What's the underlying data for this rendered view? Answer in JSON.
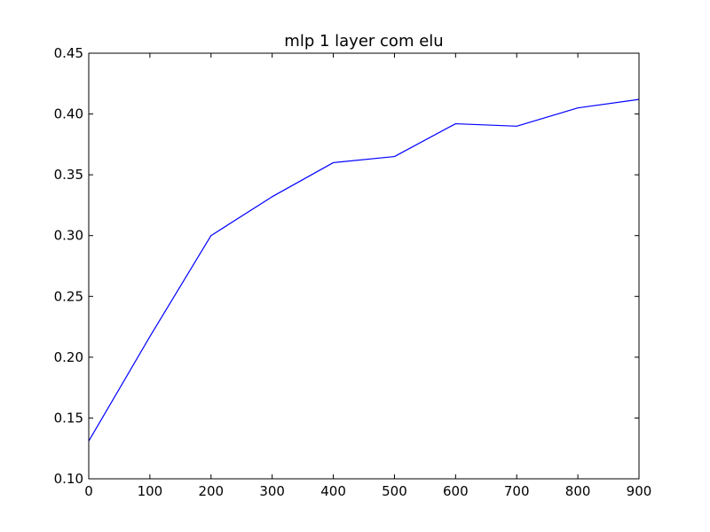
{
  "chart_data": {
    "type": "line",
    "title": "mlp 1 layer com elu",
    "xlabel": "",
    "ylabel": "",
    "xlim": [
      0,
      900
    ],
    "ylim": [
      0.1,
      0.45
    ],
    "xticks": [
      0,
      100,
      200,
      300,
      400,
      500,
      600,
      700,
      800,
      900
    ],
    "xtick_labels": [
      "0",
      "100",
      "200",
      "300",
      "400",
      "500",
      "600",
      "700",
      "800",
      "900"
    ],
    "yticks": [
      0.1,
      0.15,
      0.2,
      0.25,
      0.3,
      0.35,
      0.4,
      0.45
    ],
    "ytick_labels": [
      "0.10",
      "0.15",
      "0.20",
      "0.25",
      "0.30",
      "0.35",
      "0.40",
      "0.45"
    ],
    "grid": false,
    "series": [
      {
        "color": "#0000ff",
        "x": [
          0,
          100,
          200,
          300,
          400,
          500,
          600,
          700,
          800,
          900
        ],
        "y": [
          0.131,
          0.217,
          0.3,
          0.332,
          0.36,
          0.365,
          0.392,
          0.39,
          0.405,
          0.412
        ]
      }
    ]
  }
}
